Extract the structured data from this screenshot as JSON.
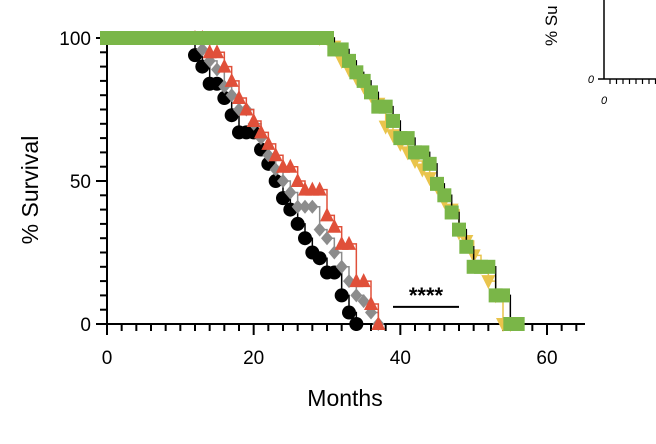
{
  "chart_data": {
    "type": "line",
    "subtype": "kaplan-meier",
    "title": "",
    "xlabel": "Months",
    "ylabel": "% Survival",
    "xlim": [
      0,
      65
    ],
    "ylim": [
      0,
      100
    ],
    "x_ticks": [
      0,
      20,
      40,
      60
    ],
    "y_ticks": [
      0,
      50,
      100
    ],
    "grid": false,
    "legend": "none",
    "annotations": [
      {
        "text": "****",
        "x_range": [
          39,
          48
        ],
        "y": 6
      }
    ],
    "series": [
      {
        "name": "black-circles",
        "color": "#000000",
        "marker": "circle",
        "x": [
          0,
          1,
          2,
          3,
          4,
          5,
          6,
          7,
          8,
          9,
          10,
          11,
          12,
          13,
          14,
          15,
          16,
          17,
          18,
          19,
          20,
          21,
          22,
          23,
          24,
          25,
          26,
          27,
          28,
          29,
          30,
          31,
          32,
          33,
          34
        ],
        "y": [
          100,
          100,
          100,
          100,
          100,
          100,
          100,
          100,
          100,
          100,
          100,
          100,
          94,
          90,
          84,
          84,
          79,
          73,
          67,
          67,
          67,
          61,
          56,
          50,
          44,
          40,
          35,
          30,
          25,
          23,
          18,
          18,
          10,
          4,
          0
        ]
      },
      {
        "name": "grey-diamonds",
        "color": "#8c8c8c",
        "marker": "diamond",
        "x": [
          12,
          13,
          14,
          15,
          16,
          17,
          18,
          19,
          20,
          21,
          22,
          23,
          24,
          25,
          26,
          27,
          28,
          29,
          30,
          31,
          32,
          33,
          34,
          35,
          36,
          37
        ],
        "y": [
          100,
          96,
          92,
          89,
          83,
          80,
          75,
          75,
          70,
          65,
          59,
          54,
          50,
          46,
          41,
          41,
          41,
          33,
          30,
          25,
          20,
          15,
          10,
          8,
          4,
          0
        ]
      },
      {
        "name": "red-triangles",
        "color": "#e0503a",
        "marker": "triangle-up",
        "x": [
          12,
          13,
          14,
          15,
          16,
          17,
          18,
          19,
          20,
          21,
          22,
          23,
          24,
          25,
          26,
          27,
          28,
          29,
          30,
          31,
          32,
          33,
          34,
          35,
          36,
          37
        ],
        "y": [
          100,
          100,
          95,
          95,
          90,
          85,
          79,
          75,
          71,
          67,
          63,
          59,
          55,
          55,
          50,
          47,
          47,
          47,
          38,
          34,
          28,
          28,
          15,
          15,
          7,
          0
        ]
      },
      {
        "name": "yellow-triangles",
        "color": "#e9c44c",
        "marker": "triangle-down",
        "x": [
          29,
          30,
          31,
          32,
          33,
          34,
          35,
          36,
          37,
          38,
          39,
          40,
          41,
          42,
          43,
          44,
          45,
          46,
          47,
          48,
          49,
          50,
          51,
          52,
          53,
          54,
          55
        ],
        "y": [
          100,
          100,
          97,
          92,
          89,
          86,
          83,
          80,
          77,
          69,
          66,
          63,
          60,
          57,
          54,
          51,
          48,
          43,
          40,
          32,
          29,
          24,
          20,
          15,
          10,
          0,
          0
        ]
      },
      {
        "name": "green-squares",
        "color": "#7ab648",
        "marker": "square",
        "x": [
          0,
          1,
          2,
          3,
          4,
          5,
          6,
          7,
          8,
          9,
          10,
          11,
          12,
          13,
          14,
          15,
          16,
          17,
          18,
          19,
          20,
          21,
          22,
          23,
          24,
          25,
          26,
          27,
          28,
          29,
          30,
          31,
          32,
          33,
          34,
          35,
          36,
          37,
          38,
          39,
          40,
          41,
          42,
          43,
          44,
          45,
          46,
          47,
          48,
          49,
          50,
          51,
          52,
          53,
          54,
          55,
          56
        ],
        "y": [
          100,
          100,
          100,
          100,
          100,
          100,
          100,
          100,
          100,
          100,
          100,
          100,
          100,
          100,
          100,
          100,
          100,
          100,
          100,
          100,
          100,
          100,
          100,
          100,
          100,
          100,
          100,
          100,
          100,
          100,
          100,
          96,
          96,
          92,
          88,
          85,
          81,
          76,
          76,
          71,
          65,
          65,
          60,
          60,
          56,
          49,
          45,
          39,
          33,
          27,
          20,
          20,
          20,
          10,
          10,
          0,
          0
        ]
      }
    ],
    "inset": {
      "ylabel": "% Su",
      "x_tick_label": "0",
      "y_tick_label": "0"
    }
  }
}
